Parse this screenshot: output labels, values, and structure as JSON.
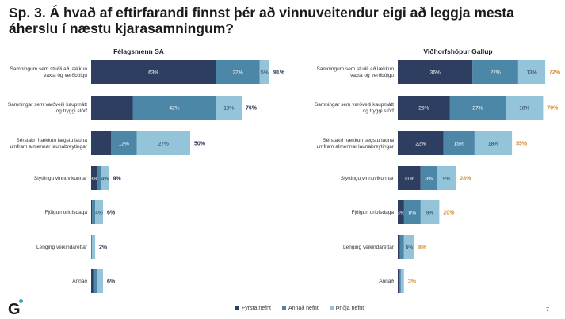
{
  "title": "Sp. 3. Á hvað af eftirfarandi finnst þér að vinnuveitendur eigi að leggja mesta áherslu í næstu kjarasamningum?",
  "logo": "G",
  "page_number": "7",
  "colors": {
    "first": "#2e3e61",
    "second": "#4d87a8",
    "third": "#93c4d9",
    "total_left": "#1f2d4a",
    "total_right": "#d68a2c"
  },
  "legend": [
    "Fyrsta nefnt",
    "Annað nefnt",
    "Þriðja nefnt"
  ],
  "chart_data": [
    {
      "type": "bar",
      "title": "Félagsmenn SA",
      "stacked": true,
      "orientation": "horizontal",
      "categories": [
        "Samningum sem stuðli að lækkun vaxta og verðbólgu",
        "Samningar sem varðveiti kaupmátt og tryggi störf",
        "Sérstakri hækkun lægstu launa umfram almennar launabreytingar",
        "Styttingu vinnuvikunnar",
        "Fjölgun orlofsdaga",
        "Lenging veikindaréttar",
        "Annað"
      ],
      "series": [
        {
          "name": "Fyrsta nefnt",
          "values": [
            63,
            21,
            10,
            3,
            0.5,
            0,
            1
          ]
        },
        {
          "name": "Annað nefnt",
          "values": [
            22,
            42,
            13,
            2,
            1.5,
            0.5,
            2
          ]
        },
        {
          "name": "Þriðja nefnt",
          "values": [
            5,
            13,
            27,
            4,
            4,
            1.5,
            3
          ]
        }
      ],
      "segment_labels": [
        [
          "63%",
          "",
          "",
          "3%",
          "",
          "",
          ""
        ],
        [
          "22%",
          "42%",
          "13%",
          "",
          "",
          "",
          ""
        ],
        [
          "5%",
          "13%",
          "27%",
          "4%",
          "4%",
          "",
          ""
        ]
      ],
      "totals": [
        "91%",
        "76%",
        "50%",
        "9%",
        "6%",
        "2%",
        "6%"
      ],
      "xlim": [
        0,
        100
      ]
    },
    {
      "type": "bar",
      "title": "Viðhorfshópur Gallup",
      "stacked": true,
      "orientation": "horizontal",
      "categories": [
        "Samningum sem stuðli að lækkun vaxta og verðbólgu",
        "Samningar sem varðveiti kaupmátt og tryggi störf",
        "Sérstakri hækkun lægstu launa umfram almennar launabreytingar",
        "Styttingu vinnuvikunnar",
        "Fjölgun orlofsdaga",
        "Lenging veikindaréttar",
        "Annað"
      ],
      "series": [
        {
          "name": "Fyrsta nefnt",
          "values": [
            36,
            25,
            22,
            11,
            3,
            1,
            0.5
          ]
        },
        {
          "name": "Annað nefnt",
          "values": [
            22,
            27,
            15,
            8,
            8,
            2,
            1
          ]
        },
        {
          "name": "Þriðja nefnt",
          "values": [
            13,
            18,
            18,
            9,
            9,
            5,
            1.5
          ]
        }
      ],
      "segment_labels": [
        [
          "36%",
          "25%",
          "22%",
          "11%",
          "3%",
          "",
          ""
        ],
        [
          "22%",
          "27%",
          "15%",
          "8%",
          "8%",
          "",
          ""
        ],
        [
          "13%",
          "18%",
          "18%",
          "9%",
          "9%",
          "5%",
          ""
        ]
      ],
      "totals": [
        "72%",
        "70%",
        "55%",
        "28%",
        "20%",
        "8%",
        "3%"
      ],
      "xlim": [
        0,
        100
      ]
    }
  ]
}
